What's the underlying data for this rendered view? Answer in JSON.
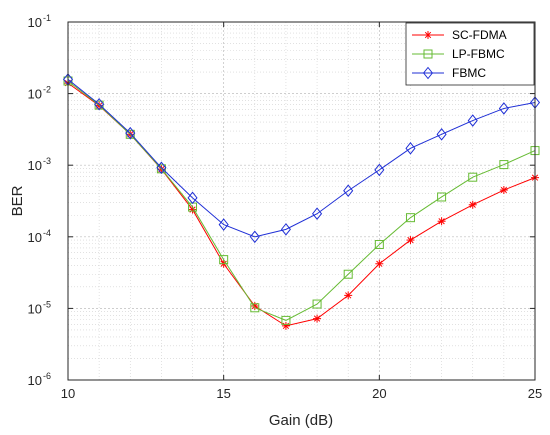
{
  "chart_data": {
    "type": "line",
    "title": "",
    "xlabel": "Gain (dB)",
    "ylabel": "BER",
    "xlim": [
      10,
      25
    ],
    "ylim": [
      1e-06,
      0.1
    ],
    "y_scale": "log",
    "grid": true,
    "legend_position": "top-right",
    "x_ticks": [
      10,
      15,
      20,
      25
    ],
    "y_ticks": [
      {
        "value": 1e-06,
        "mantissa": "10",
        "exp": "-6"
      },
      {
        "value": 1e-05,
        "mantissa": "10",
        "exp": "-5"
      },
      {
        "value": 0.0001,
        "mantissa": "10",
        "exp": "-4"
      },
      {
        "value": 0.001,
        "mantissa": "10",
        "exp": "-3"
      },
      {
        "value": 0.01,
        "mantissa": "10",
        "exp": "-2"
      },
      {
        "value": 0.1,
        "mantissa": "10",
        "exp": "-1"
      }
    ],
    "x": [
      10,
      11,
      12,
      13,
      14,
      15,
      16,
      17,
      18,
      19,
      20,
      21,
      22,
      23,
      24,
      25
    ],
    "series": [
      {
        "name": "SC-FDMA",
        "color": "#ff0000",
        "marker": "asterisk",
        "values": [
          0.014,
          0.0068,
          0.0027,
          0.00088,
          0.00024,
          4.2e-05,
          1.08e-05,
          5.7e-06,
          7.2e-06,
          1.52e-05,
          4.2e-05,
          9e-05,
          0.000165,
          0.00028,
          0.00045,
          0.00067
        ]
      },
      {
        "name": "LP-FBMC",
        "color": "#66bb33",
        "marker": "square",
        "values": [
          0.015,
          0.0069,
          0.0027,
          0.00089,
          0.00026,
          4.8e-05,
          1.02e-05,
          6.8e-06,
          1.15e-05,
          3e-05,
          7.8e-05,
          0.000185,
          0.00036,
          0.00068,
          0.00102,
          0.0016
        ]
      },
      {
        "name": "FBMC",
        "color": "#1f2fd6",
        "marker": "diamond",
        "values": [
          0.0158,
          0.0071,
          0.0028,
          0.00092,
          0.00035,
          0.000148,
          0.0001,
          0.000127,
          0.00021,
          0.00044,
          0.00086,
          0.00172,
          0.0027,
          0.0042,
          0.0062,
          0.0075
        ]
      }
    ]
  }
}
